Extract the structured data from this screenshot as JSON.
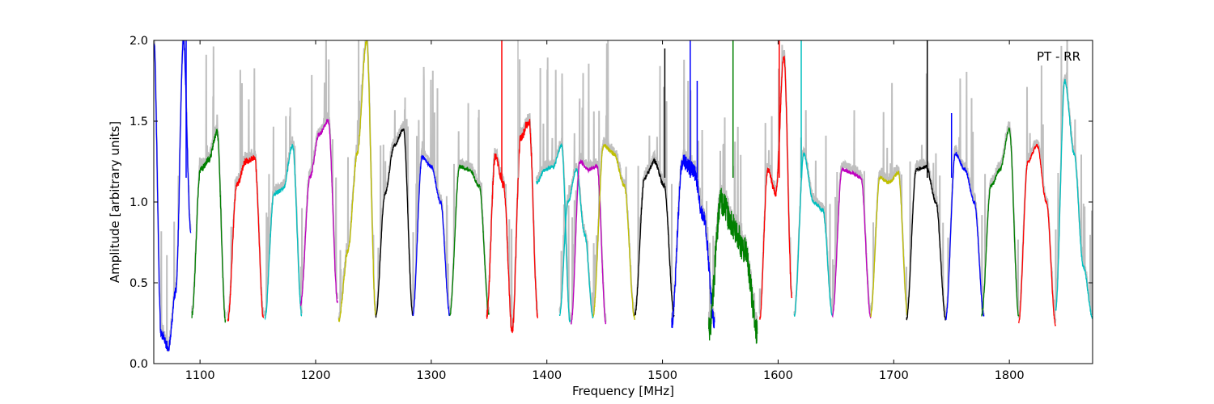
{
  "chart_data": {
    "type": "line",
    "title": "",
    "annotation": "PT - RR",
    "xlabel": "Frequency [MHz]",
    "ylabel": "Amplitude [arbitrary units]",
    "xlim": [
      1060,
      1872
    ],
    "ylim": [
      0.0,
      2.0
    ],
    "xticks": [
      1100,
      1200,
      1300,
      1400,
      1500,
      1600,
      1700,
      1800
    ],
    "xtick_labels": [
      "1100",
      "1200",
      "1300",
      "1400",
      "1500",
      "1600",
      "1700",
      "1800"
    ],
    "yticks": [
      0.0,
      0.5,
      1.0,
      1.5,
      2.0
    ],
    "ytick_labels": [
      "0.0",
      "0.5",
      "1.0",
      "1.5",
      "2.0"
    ],
    "grid": false,
    "colors": {
      "background_trace": "#bfbfbf",
      "cycle": [
        "#0000ff",
        "#008000",
        "#ff0000",
        "#00bfbf",
        "#bf00bf",
        "#bfbf00",
        "#000000"
      ]
    },
    "channels": [
      {
        "start": 1060,
        "end": 1092,
        "color": "#0000ff",
        "levels": [
          2.0,
          0.18,
          0.1,
          0.45,
          2.0,
          0.8
        ],
        "noise": 0.03
      },
      {
        "start": 1093,
        "end": 1122,
        "color": "#008000",
        "levels": [
          0.3,
          1.2,
          1.26,
          1.43,
          0.27
        ],
        "noise": 0.02
      },
      {
        "start": 1124,
        "end": 1155,
        "color": "#ff0000",
        "levels": [
          0.26,
          1.1,
          1.25,
          1.27,
          0.27
        ],
        "noise": 0.02
      },
      {
        "start": 1156,
        "end": 1188,
        "color": "#00bfbf",
        "levels": [
          0.27,
          1.05,
          1.08,
          1.35,
          0.3
        ],
        "noise": 0.015
      },
      {
        "start": 1187,
        "end": 1219,
        "color": "#bf00bf",
        "levels": [
          0.37,
          1.15,
          1.42,
          1.5,
          0.38
        ],
        "noise": 0.015
      },
      {
        "start": 1220,
        "end": 1252,
        "color": "#bfbf00",
        "levels": [
          0.27,
          0.7,
          1.3,
          2.0,
          0.3
        ],
        "noise": 0.02
      },
      {
        "start": 1252,
        "end": 1284,
        "color": "#000000",
        "levels": [
          0.29,
          1.05,
          1.35,
          1.45,
          0.3
        ],
        "noise": 0.012
      },
      {
        "start": 1284,
        "end": 1316,
        "color": "#0000ff",
        "levels": [
          0.3,
          1.28,
          1.22,
          1.0,
          0.3
        ],
        "noise": 0.012
      },
      {
        "start": 1316,
        "end": 1350,
        "color": "#008000",
        "levels": [
          0.3,
          1.22,
          1.2,
          1.1,
          0.3
        ],
        "noise": 0.012
      },
      {
        "start": 1348,
        "end": 1392,
        "color": "#ff0000",
        "levels": [
          0.3,
          1.28,
          1.1,
          0.2,
          1.4,
          1.5,
          0.3
        ],
        "noise": 0.03
      },
      {
        "start": 1391,
        "end": 1420,
        "color": "#00bfbf",
        "levels": [
          1.12,
          1.2,
          1.22,
          1.35,
          0.26
        ],
        "noise": 0.012
      },
      {
        "start": 1411,
        "end": 1440,
        "color": "#00bfbf",
        "levels": [
          0.3,
          1.0,
          1.2,
          0.8,
          0.28
        ],
        "noise": 0.01
      },
      {
        "start": 1421,
        "end": 1451,
        "color": "#bf00bf",
        "levels": [
          0.25,
          1.25,
          1.2,
          1.22,
          0.25
        ],
        "noise": 0.012
      },
      {
        "start": 1440,
        "end": 1476,
        "color": "#bfbf00",
        "levels": [
          0.3,
          1.35,
          1.3,
          1.1,
          0.28
        ],
        "noise": 0.015
      },
      {
        "start": 1476,
        "end": 1510,
        "color": "#000000",
        "levels": [
          0.3,
          1.15,
          1.25,
          1.1,
          0.3
        ],
        "noise": 0.015
      },
      {
        "start": 1508,
        "end": 1545,
        "color": "#0000ff",
        "levels": [
          0.25,
          1.25,
          1.2,
          0.9,
          0.25
        ],
        "noise": 0.05
      },
      {
        "start": 1540,
        "end": 1582,
        "color": "#008000",
        "levels": [
          0.2,
          1.0,
          0.85,
          0.7,
          0.2
        ],
        "noise": 0.09
      },
      {
        "start": 1584,
        "end": 1612,
        "color": "#ff0000",
        "levels": [
          0.27,
          1.2,
          1.05,
          1.9,
          0.4
        ],
        "noise": 0.02
      },
      {
        "start": 1614,
        "end": 1647,
        "color": "#00bfbf",
        "levels": [
          0.3,
          1.3,
          1.0,
          0.95,
          0.3
        ],
        "noise": 0.012
      },
      {
        "start": 1647,
        "end": 1680,
        "color": "#bf00bf",
        "levels": [
          0.3,
          1.2,
          1.18,
          1.15,
          0.29
        ],
        "noise": 0.01
      },
      {
        "start": 1680,
        "end": 1712,
        "color": "#bfbf00",
        "levels": [
          0.3,
          1.15,
          1.12,
          1.18,
          0.3
        ],
        "noise": 0.012
      },
      {
        "start": 1711,
        "end": 1745,
        "color": "#000000",
        "levels": [
          0.27,
          1.2,
          1.22,
          1.0,
          0.27
        ],
        "noise": 0.012
      },
      {
        "start": 1745,
        "end": 1778,
        "color": "#0000ff",
        "levels": [
          0.28,
          1.3,
          1.2,
          1.0,
          0.3
        ],
        "noise": 0.012
      },
      {
        "start": 1776,
        "end": 1808,
        "color": "#008000",
        "levels": [
          0.3,
          1.1,
          1.2,
          1.45,
          0.3
        ],
        "noise": 0.012
      },
      {
        "start": 1808,
        "end": 1840,
        "color": "#ff0000",
        "levels": [
          0.25,
          1.25,
          1.35,
          1.0,
          0.24
        ],
        "noise": 0.01
      },
      {
        "start": 1840,
        "end": 1872,
        "color": "#00bfbf",
        "levels": [
          0.33,
          1.75,
          1.3,
          0.6,
          0.28
        ],
        "noise": 0.012
      }
    ],
    "spikes": [
      {
        "x": 1088,
        "y": 2.0,
        "color": "#0000ff"
      },
      {
        "x": 1375,
        "y": 2.0,
        "color": "#bfbfbf"
      },
      {
        "x": 1502,
        "y": 1.95,
        "color": "#000000"
      },
      {
        "x": 1729,
        "y": 2.0,
        "color": "#000000"
      },
      {
        "x": 1750,
        "y": 1.55,
        "color": "#0000ff"
      },
      {
        "x": 1361,
        "y": 2.0,
        "color": "#ff0000"
      },
      {
        "x": 1524,
        "y": 2.0,
        "color": "#0000ff"
      },
      {
        "x": 1530,
        "y": 1.75,
        "color": "#0000ff"
      },
      {
        "x": 1561,
        "y": 2.0,
        "color": "#008000"
      },
      {
        "x": 1601,
        "y": 2.0,
        "color": "#ff0000"
      },
      {
        "x": 1620,
        "y": 2.0,
        "color": "#00bfbf"
      }
    ]
  }
}
